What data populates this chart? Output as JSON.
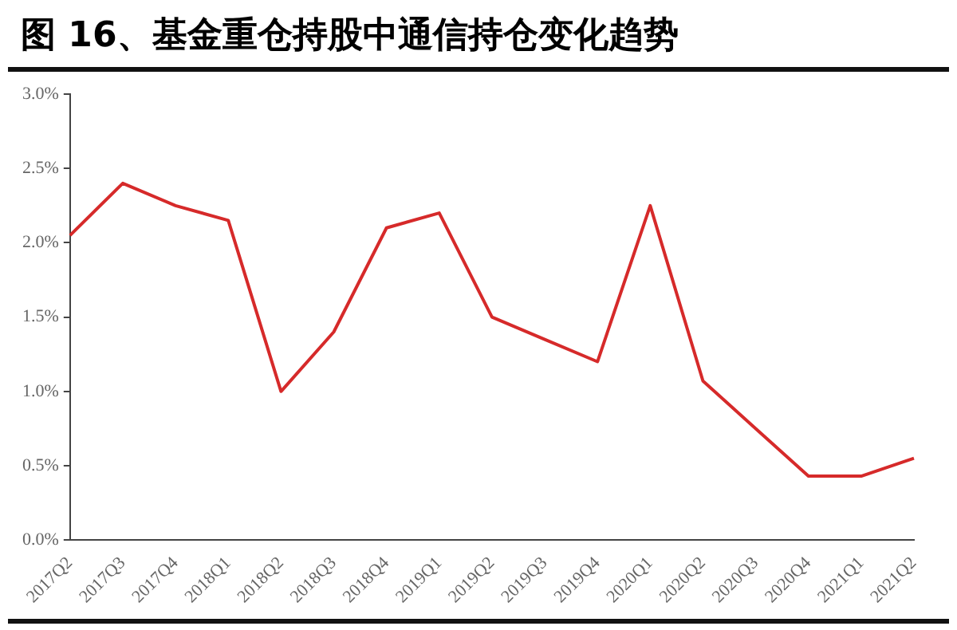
{
  "chart_data": {
    "type": "line",
    "title": "图 16、基金重仓持股中通信持仓变化趋势",
    "categories": [
      "2017Q2",
      "2017Q3",
      "2017Q4",
      "2018Q1",
      "2018Q2",
      "2018Q3",
      "2018Q4",
      "2019Q1",
      "2019Q2",
      "2019Q3",
      "2019Q4",
      "2020Q1",
      "2020Q2",
      "2020Q3",
      "2020Q4",
      "2021Q1",
      "2021Q2"
    ],
    "series": [
      {
        "color": "#d62a2a",
        "values": [
          2.05,
          2.4,
          2.25,
          2.15,
          1.0,
          1.4,
          2.1,
          2.2,
          1.5,
          1.35,
          1.2,
          2.25,
          1.07,
          0.75,
          0.43,
          0.43,
          0.55
        ]
      }
    ],
    "ylim": [
      0,
      3
    ],
    "yticks": [
      {
        "value": 0,
        "label": "0.0%"
      },
      {
        "value": 0.5,
        "label": "0.5%"
      },
      {
        "value": 1,
        "label": "1.0%"
      },
      {
        "value": 1.5,
        "label": "1.5%"
      },
      {
        "value": 2,
        "label": "2.0%"
      },
      {
        "value": 2.5,
        "label": "2.5%"
      },
      {
        "value": 3,
        "label": "3.0%"
      }
    ],
    "grid": false,
    "legend": false,
    "marker": "none",
    "line_style": "solid"
  }
}
